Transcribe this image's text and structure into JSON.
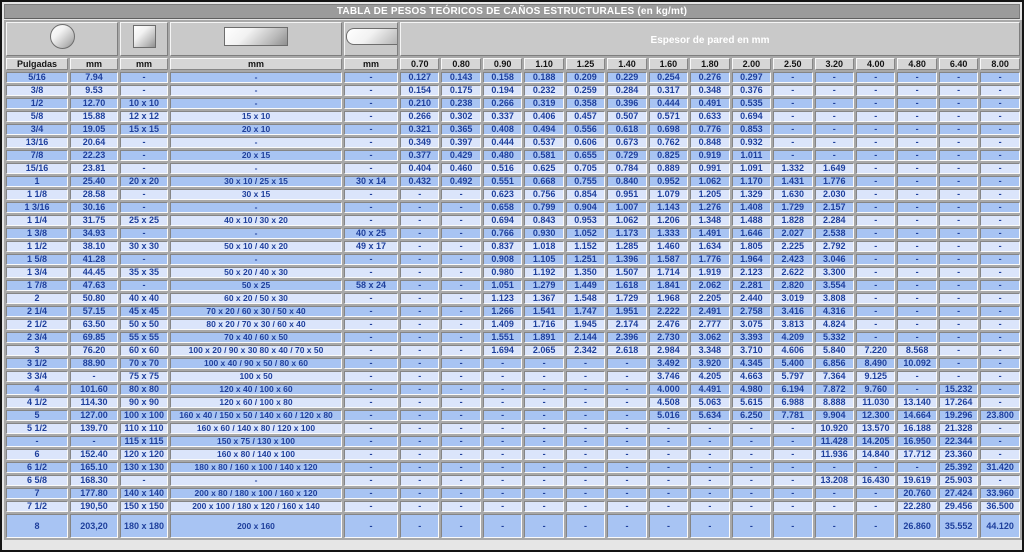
{
  "title": "TABLA DE PESOS TEÓRICOS DE CAÑOS ESTRUCTURALES (en kg/mt)",
  "header": {
    "espesor_label": "Espesor de pared en mm",
    "shape_icons": [
      "round-tube-icon",
      "square-tube-icon",
      "rectangular-tube-icon",
      "oval-tube-icon"
    ]
  },
  "colors": {
    "title_bg": "#9b9b9b",
    "shapes_bg": "#c9c9c9",
    "header_bg": "#d6d6d6",
    "row_dark": "#a8c4f3",
    "row_light": "#dbe5fb",
    "data_text": "#1e3f9c",
    "grid_gap": "#a8a8a8"
  },
  "table": {
    "size_columns": [
      "Pulgadas",
      "mm",
      "mm",
      "mm",
      "mm"
    ],
    "thickness_columns": [
      "0.70",
      "0.80",
      "0.90",
      "1.10",
      "1.25",
      "1.40",
      "1.60",
      "1.80",
      "2.00",
      "2.50",
      "3.20",
      "4.00",
      "4.80",
      "6.40",
      "8.00"
    ],
    "rows": [
      [
        "5/16",
        "7.94",
        "-",
        "-",
        "-",
        "0.127",
        "0.143",
        "0.158",
        "0.188",
        "0.209",
        "0.229",
        "0.254",
        "0.276",
        "0.297",
        "-",
        "-",
        "-",
        "-",
        "-",
        "-"
      ],
      [
        "3/8",
        "9.53",
        "-",
        "-",
        "-",
        "0.154",
        "0.175",
        "0.194",
        "0.232",
        "0.259",
        "0.284",
        "0.317",
        "0.348",
        "0.376",
        "-",
        "-",
        "-",
        "-",
        "-",
        "-"
      ],
      [
        "1/2",
        "12.70",
        "10 x 10",
        "-",
        "-",
        "0.210",
        "0.238",
        "0.266",
        "0.319",
        "0.358",
        "0.396",
        "0.444",
        "0.491",
        "0.535",
        "-",
        "-",
        "-",
        "-",
        "-",
        "-"
      ],
      [
        "5/8",
        "15.88",
        "12 x 12",
        "15 x 10",
        "-",
        "0.266",
        "0.302",
        "0.337",
        "0.406",
        "0.457",
        "0.507",
        "0.571",
        "0.633",
        "0.694",
        "-",
        "-",
        "-",
        "-",
        "-",
        "-"
      ],
      [
        "3/4",
        "19.05",
        "15 x 15",
        "20 x 10",
        "-",
        "0.321",
        "0.365",
        "0.408",
        "0.494",
        "0.556",
        "0.618",
        "0.698",
        "0.776",
        "0.853",
        "-",
        "-",
        "-",
        "-",
        "-",
        "-"
      ],
      [
        "13/16",
        "20.64",
        "-",
        "-",
        "-",
        "0.349",
        "0.397",
        "0.444",
        "0.537",
        "0.606",
        "0.673",
        "0.762",
        "0.848",
        "0.932",
        "-",
        "-",
        "-",
        "-",
        "-",
        "-"
      ],
      [
        "7/8",
        "22.23",
        "-",
        "20 x 15",
        "-",
        "0.377",
        "0.429",
        "0.480",
        "0.581",
        "0.655",
        "0.729",
        "0.825",
        "0.919",
        "1.011",
        "-",
        "-",
        "-",
        "-",
        "-",
        "-"
      ],
      [
        "15/16",
        "23.81",
        "-",
        "-",
        "-",
        "0.404",
        "0.460",
        "0.516",
        "0.625",
        "0.705",
        "0.784",
        "0.889",
        "0.991",
        "1.091",
        "1.332",
        "1.649",
        "-",
        "-",
        "-",
        "-"
      ],
      [
        "1",
        "25.40",
        "20 x 20",
        "30 x 10 / 25 x 15",
        "30 x 14",
        "0.432",
        "0.492",
        "0.551",
        "0.668",
        "0.755",
        "0.840",
        "0.952",
        "1.062",
        "1.170",
        "1.431",
        "1.776",
        "-",
        "-",
        "-",
        "-"
      ],
      [
        "1 1/8",
        "28.58",
        "-",
        "30 x 15",
        "-",
        "-",
        "-",
        "0.623",
        "0.756",
        "0.854",
        "0.951",
        "1.079",
        "1.205",
        "1.329",
        "1.630",
        "2.030",
        "-",
        "-",
        "-",
        "-"
      ],
      [
        "1 3/16",
        "30.16",
        "-",
        "-",
        "-",
        "-",
        "-",
        "0.658",
        "0.799",
        "0.904",
        "1.007",
        "1.143",
        "1.276",
        "1.408",
        "1.729",
        "2.157",
        "-",
        "-",
        "-",
        "-"
      ],
      [
        "1 1/4",
        "31.75",
        "25 x 25",
        "40 x 10 / 30 x 20",
        "-",
        "-",
        "-",
        "0.694",
        "0.843",
        "0.953",
        "1.062",
        "1.206",
        "1.348",
        "1.488",
        "1.828",
        "2.284",
        "-",
        "-",
        "-",
        "-"
      ],
      [
        "1 3/8",
        "34.93",
        "-",
        "-",
        "40 x 25",
        "-",
        "-",
        "0.766",
        "0.930",
        "1.052",
        "1.173",
        "1.333",
        "1.491",
        "1.646",
        "2.027",
        "2.538",
        "-",
        "-",
        "-",
        "-"
      ],
      [
        "1 1/2",
        "38.10",
        "30 x 30",
        "50 x 10 / 40 x 20",
        "49 x 17",
        "-",
        "-",
        "0.837",
        "1.018",
        "1.152",
        "1.285",
        "1.460",
        "1.634",
        "1.805",
        "2.225",
        "2.792",
        "-",
        "-",
        "-",
        "-"
      ],
      [
        "1 5/8",
        "41.28",
        "-",
        "-",
        "-",
        "-",
        "-",
        "0.908",
        "1.105",
        "1.251",
        "1.396",
        "1.587",
        "1.776",
        "1.964",
        "2.423",
        "3.046",
        "-",
        "-",
        "-",
        "-"
      ],
      [
        "1 3/4",
        "44.45",
        "35 x 35",
        "50 x 20 / 40 x 30",
        "-",
        "-",
        "-",
        "0.980",
        "1.192",
        "1.350",
        "1.507",
        "1.714",
        "1.919",
        "2.123",
        "2.622",
        "3.300",
        "-",
        "-",
        "-",
        "-"
      ],
      [
        "1 7/8",
        "47.63",
        "-",
        "50 x 25",
        "58 x 24",
        "-",
        "-",
        "1.051",
        "1.279",
        "1.449",
        "1.618",
        "1.841",
        "2.062",
        "2.281",
        "2.820",
        "3.554",
        "-",
        "-",
        "-",
        "-"
      ],
      [
        "2",
        "50.80",
        "40 x 40",
        "60 x 20 / 50 x 30",
        "-",
        "-",
        "-",
        "1.123",
        "1.367",
        "1.548",
        "1.729",
        "1.968",
        "2.205",
        "2.440",
        "3.019",
        "3.808",
        "-",
        "-",
        "-",
        "-"
      ],
      [
        "2 1/4",
        "57.15",
        "45 x 45",
        "70 x 20 / 60 x 30 / 50 x 40",
        "-",
        "-",
        "-",
        "1.266",
        "1.541",
        "1.747",
        "1.951",
        "2.222",
        "2.491",
        "2.758",
        "3.416",
        "4.316",
        "-",
        "-",
        "-",
        "-"
      ],
      [
        "2 1/2",
        "63.50",
        "50 x 50",
        "80 x 20 / 70 x 30 / 60 x 40",
        "-",
        "-",
        "-",
        "1.409",
        "1.716",
        "1.945",
        "2.174",
        "2.476",
        "2.777",
        "3.075",
        "3.813",
        "4.824",
        "-",
        "-",
        "-",
        "-"
      ],
      [
        "2 3/4",
        "69.85",
        "55 x 55",
        "70 x 40 / 60 x 50",
        "-",
        "-",
        "-",
        "1.551",
        "1.891",
        "2.144",
        "2.396",
        "2.730",
        "3.062",
        "3.393",
        "4.209",
        "5.332",
        "-",
        "-",
        "-",
        "-"
      ],
      [
        "3",
        "76.20",
        "60 x 60",
        "100 x 20 / 90 x 30 80 x 40 / 70 x 50",
        "-",
        "-",
        "-",
        "1.694",
        "2.065",
        "2.342",
        "2.618",
        "2.984",
        "3.348",
        "3.710",
        "4.606",
        "5.840",
        "7.220",
        "8.568",
        "-",
        "-"
      ],
      [
        "3 1/2",
        "88.90",
        "70 x 70",
        "100 x 40 / 90 x 50 / 80 x 60",
        "-",
        "-",
        "-",
        "-",
        "-",
        "-",
        "-",
        "3.492",
        "3.920",
        "4.345",
        "5.400",
        "6.856",
        "8.490",
        "10.092",
        "-",
        "-"
      ],
      [
        "3 3/4",
        "-",
        "75 x 75",
        "100 x 50",
        "-",
        "-",
        "-",
        "-",
        "-",
        "-",
        "-",
        "3.746",
        "4.205",
        "4.663",
        "5.797",
        "7.364",
        "9.125",
        "-",
        "-",
        "-"
      ],
      [
        "4",
        "101.60",
        "80 x 80",
        "120 x 40 / 100 x 60",
        "-",
        "-",
        "-",
        "-",
        "-",
        "-",
        "-",
        "4.000",
        "4.491",
        "4.980",
        "6.194",
        "7.872",
        "9.760",
        "-",
        "15.232",
        "-"
      ],
      [
        "4 1/2",
        "114.30",
        "90 x 90",
        "120 x 60 / 100 x 80",
        "-",
        "-",
        "-",
        "-",
        "-",
        "-",
        "-",
        "4.508",
        "5.063",
        "5.615",
        "6.988",
        "8.888",
        "11.030",
        "13.140",
        "17.264",
        "-"
      ],
      [
        "5",
        "127.00",
        "100 x 100",
        "160 x 40 / 150 x 50 / 140 x 60 / 120 x 80",
        "-",
        "-",
        "-",
        "-",
        "-",
        "-",
        "-",
        "5.016",
        "5.634",
        "6.250",
        "7.781",
        "9.904",
        "12.300",
        "14.664",
        "19.296",
        "23.800"
      ],
      [
        "5 1/2",
        "139.70",
        "110 x 110",
        "160 x 60 / 140 x 80 / 120 x 100",
        "-",
        "-",
        "-",
        "-",
        "-",
        "-",
        "-",
        "-",
        "-",
        "-",
        "-",
        "10.920",
        "13.570",
        "16.188",
        "21.328",
        "-"
      ],
      [
        "-",
        "-",
        "115 x 115",
        "150 x 75 / 130 x 100",
        "-",
        "-",
        "-",
        "-",
        "-",
        "-",
        "-",
        "-",
        "-",
        "-",
        "-",
        "11.428",
        "14.205",
        "16.950",
        "22.344",
        "-"
      ],
      [
        "6",
        "152.40",
        "120 x 120",
        "160 x 80 / 140 x 100",
        "-",
        "-",
        "-",
        "-",
        "-",
        "-",
        "-",
        "-",
        "-",
        "-",
        "-",
        "11.936",
        "14.840",
        "17.712",
        "23.360",
        "-"
      ],
      [
        "6 1/2",
        "165.10",
        "130 x 130",
        "180 x 80 / 160 x 100 / 140 x 120",
        "-",
        "-",
        "-",
        "-",
        "-",
        "-",
        "-",
        "-",
        "-",
        "-",
        "-",
        "-",
        "-",
        "-",
        "25.392",
        "31.420"
      ],
      [
        "6 5/8",
        "168.30",
        "-",
        "-",
        "-",
        "-",
        "-",
        "-",
        "-",
        "-",
        "-",
        "-",
        "-",
        "-",
        "-",
        "13.208",
        "16.430",
        "19.619",
        "25.903",
        "-"
      ],
      [
        "7",
        "177.80",
        "140 x 140",
        "200 x 80 / 180 x 100 / 160 x 120",
        "-",
        "-",
        "-",
        "-",
        "-",
        "-",
        "-",
        "-",
        "-",
        "-",
        "-",
        "-",
        "-",
        "20.760",
        "27.424",
        "33.960"
      ],
      [
        "7 1/2",
        "190,50",
        "150 x 150",
        "200 x 100 / 180 x 120 / 160 x 140",
        "-",
        "-",
        "-",
        "-",
        "-",
        "-",
        "-",
        "-",
        "-",
        "-",
        "-",
        "-",
        "-",
        "22.280",
        "29.456",
        "36.500"
      ],
      [
        "8",
        "203,20",
        "180 x 180",
        "200 x 160",
        "-",
        "-",
        "-",
        "-",
        "-",
        "-",
        "-",
        "-",
        "-",
        "-",
        "-",
        "-",
        "-",
        "26.860",
        "35.552",
        "44.120"
      ]
    ]
  }
}
